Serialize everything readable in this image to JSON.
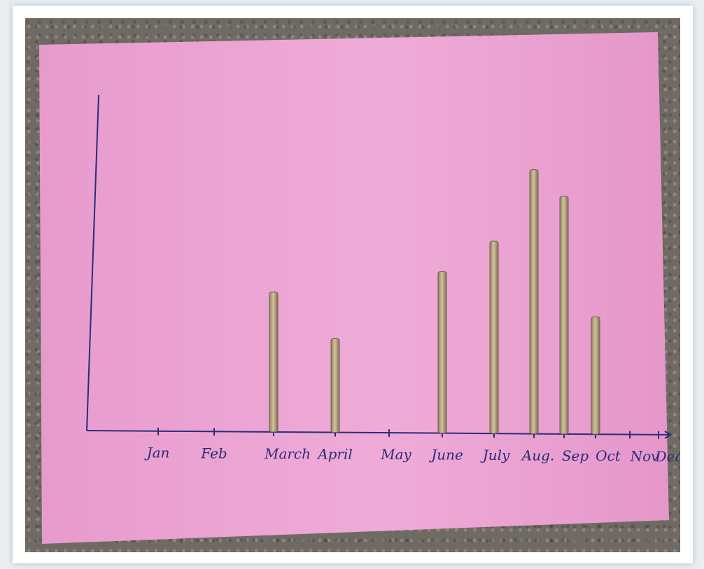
{
  "chart_data": {
    "type": "bar",
    "categories": [
      "Jan",
      "Feb",
      "March",
      "April",
      "May",
      "June",
      "July",
      "Aug.",
      "Sep",
      "Oct",
      "Nov",
      "Dec"
    ],
    "values": [
      0,
      0,
      200,
      134,
      0,
      231,
      275,
      378,
      340,
      168,
      0,
      0
    ],
    "value_unit_note": "",
    "title": "",
    "xlabel": "",
    "ylabel": "",
    "ylim": [
      0,
      480
    ],
    "grid": false,
    "legend": "none"
  },
  "colors": {
    "paper": "#eaa1d1",
    "ink": "#2b2c7a",
    "stick_light": "#c9b893",
    "stick_dark": "#8c7d5f"
  }
}
